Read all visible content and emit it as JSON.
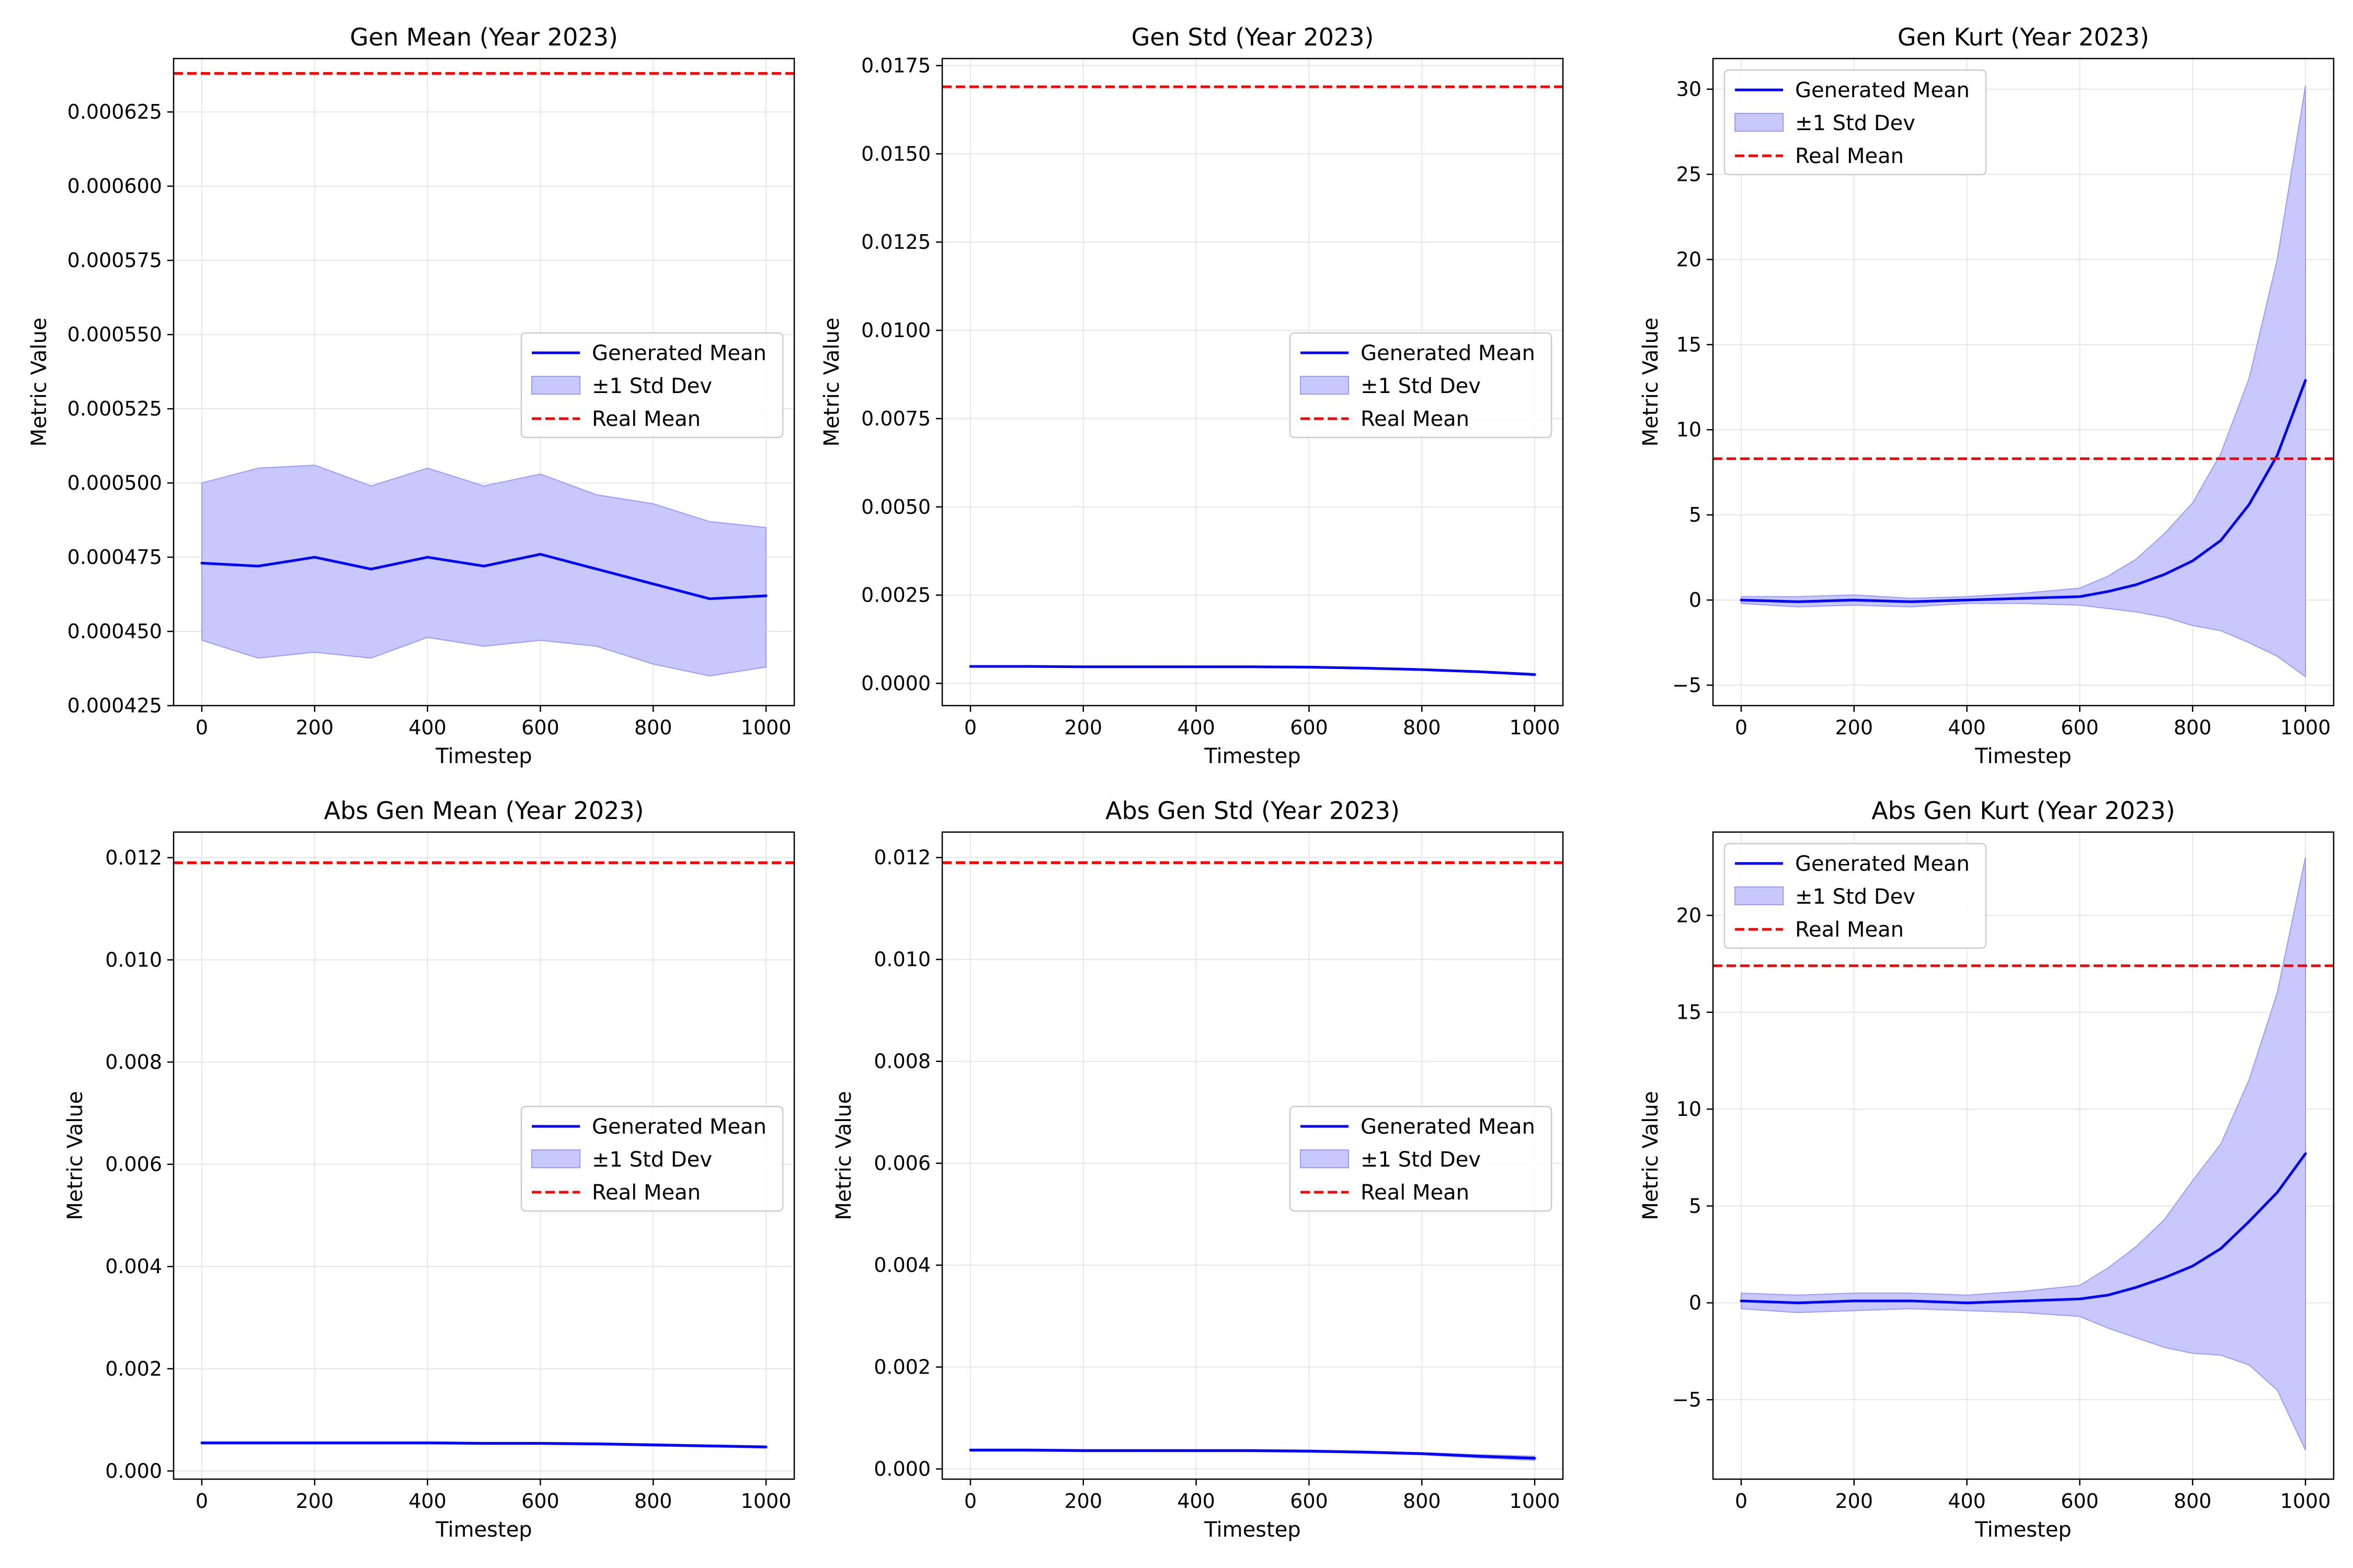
{
  "colors": {
    "generated": "#0000ff",
    "band": "#c8c8ff",
    "band_edge": "#9b9bff",
    "real": "#ff0000",
    "grid": "#e6e6e6",
    "axes": "#000000"
  },
  "chart_data": [
    {
      "type": "line",
      "title": "Gen Mean (Year 2023)",
      "xlabel": "Timestep",
      "ylabel": "Metric Value",
      "xlim": [
        -50,
        1050
      ],
      "ylim": [
        0.000425,
        0.000643
      ],
      "xticks": [
        0,
        200,
        400,
        600,
        800,
        1000
      ],
      "yticks": [
        "0.000425",
        "0.000450",
        "0.000475",
        "0.000500",
        "0.000525",
        "0.000550",
        "0.000575",
        "0.000600",
        "0.000625"
      ],
      "grid": true,
      "legend_position": "center-right",
      "legend": [
        "Generated Mean",
        "±1 Std Dev",
        "Real Mean"
      ],
      "real_mean": 0.000638,
      "x": [
        0,
        100,
        200,
        300,
        400,
        500,
        600,
        700,
        800,
        900,
        1000
      ],
      "generated_mean": [
        0.000473,
        0.000472,
        0.000475,
        0.000471,
        0.000475,
        0.000472,
        0.000476,
        0.000471,
        0.000466,
        0.000461,
        0.000462
      ],
      "std_upper": [
        0.0005,
        0.000505,
        0.000506,
        0.000499,
        0.000505,
        0.000499,
        0.000503,
        0.000496,
        0.000493,
        0.000487,
        0.000485
      ],
      "std_lower": [
        0.000447,
        0.000441,
        0.000443,
        0.000441,
        0.000448,
        0.000445,
        0.000447,
        0.000445,
        0.000439,
        0.000435,
        0.000438
      ]
    },
    {
      "type": "line",
      "title": "Gen Std (Year 2023)",
      "xlabel": "Timestep",
      "ylabel": "Metric Value",
      "xlim": [
        -50,
        1050
      ],
      "ylim": [
        -0.00063,
        0.0177
      ],
      "xticks": [
        0,
        200,
        400,
        600,
        800,
        1000
      ],
      "yticks": [
        "0.0000",
        "0.0025",
        "0.0050",
        "0.0075",
        "0.0100",
        "0.0125",
        "0.0150",
        "0.0175"
      ],
      "grid": true,
      "legend_position": "center-right",
      "legend": [
        "Generated Mean",
        "±1 Std Dev",
        "Real Mean"
      ],
      "real_mean": 0.0169,
      "x": [
        0,
        100,
        200,
        300,
        400,
        500,
        600,
        700,
        800,
        900,
        1000
      ],
      "generated_mean": [
        0.00048,
        0.00048,
        0.00047,
        0.00047,
        0.00047,
        0.00047,
        0.00046,
        0.00043,
        0.00039,
        0.00033,
        0.00025
      ],
      "std_upper": [
        0.0005,
        0.0005,
        0.00049,
        0.00049,
        0.00049,
        0.00049,
        0.00048,
        0.00045,
        0.00041,
        0.00035,
        0.00028
      ],
      "std_lower": [
        0.00046,
        0.00046,
        0.00045,
        0.00045,
        0.00045,
        0.00045,
        0.00044,
        0.00041,
        0.00037,
        0.00031,
        0.00022
      ]
    },
    {
      "type": "line",
      "title": "Gen Kurt (Year 2023)",
      "xlabel": "Timestep",
      "ylabel": "Metric Value",
      "xlim": [
        -50,
        1050
      ],
      "ylim": [
        -6.2,
        31.8
      ],
      "xticks": [
        0,
        200,
        400,
        600,
        800,
        1000
      ],
      "yticks": [
        "−5",
        "0",
        "5",
        "10",
        "15",
        "20",
        "25",
        "30"
      ],
      "grid": true,
      "legend_position": "upper-left",
      "legend": [
        "Generated Mean",
        "±1 Std Dev",
        "Real Mean"
      ],
      "real_mean": 8.3,
      "x": [
        0,
        100,
        200,
        300,
        400,
        500,
        600,
        650,
        700,
        750,
        800,
        850,
        900,
        950,
        1000
      ],
      "generated_mean": [
        0.0,
        -0.1,
        0.0,
        -0.1,
        0.0,
        0.1,
        0.2,
        0.5,
        0.9,
        1.5,
        2.3,
        3.5,
        5.6,
        8.5,
        12.9
      ],
      "std_upper": [
        0.2,
        0.2,
        0.3,
        0.1,
        0.2,
        0.4,
        0.7,
        1.4,
        2.4,
        3.9,
        5.7,
        8.6,
        13.0,
        20.0,
        30.2
      ],
      "std_lower": [
        -0.2,
        -0.4,
        -0.3,
        -0.4,
        -0.2,
        -0.2,
        -0.3,
        -0.5,
        -0.7,
        -1.0,
        -1.5,
        -1.8,
        -2.5,
        -3.3,
        -4.5
      ]
    },
    {
      "type": "line",
      "title": "Abs Gen Mean (Year 2023)",
      "xlabel": "Timestep",
      "ylabel": "Metric Value",
      "xlim": [
        -50,
        1050
      ],
      "ylim": [
        -0.00016,
        0.0125
      ],
      "xticks": [
        0,
        200,
        400,
        600,
        800,
        1000
      ],
      "yticks": [
        "0.000",
        "0.002",
        "0.004",
        "0.006",
        "0.008",
        "0.010",
        "0.012"
      ],
      "grid": true,
      "legend_position": "center-right",
      "legend": [
        "Generated Mean",
        "±1 Std Dev",
        "Real Mean"
      ],
      "real_mean": 0.0119,
      "x": [
        0,
        100,
        200,
        300,
        400,
        500,
        600,
        700,
        800,
        900,
        1000
      ],
      "generated_mean": [
        0.00055,
        0.00055,
        0.00055,
        0.00055,
        0.00055,
        0.00054,
        0.00054,
        0.00053,
        0.00051,
        0.00049,
        0.00047
      ],
      "std_upper": [
        0.00057,
        0.00057,
        0.00057,
        0.00057,
        0.00057,
        0.00056,
        0.00056,
        0.00055,
        0.00053,
        0.00051,
        0.00049
      ],
      "std_lower": [
        0.00053,
        0.00053,
        0.00053,
        0.00053,
        0.00053,
        0.00052,
        0.00052,
        0.00051,
        0.00049,
        0.00047,
        0.00045
      ]
    },
    {
      "type": "line",
      "title": "Abs Gen Std (Year 2023)",
      "xlabel": "Timestep",
      "ylabel": "Metric Value",
      "xlim": [
        -50,
        1050
      ],
      "ylim": [
        -0.0002,
        0.0125
      ],
      "xticks": [
        0,
        200,
        400,
        600,
        800,
        1000
      ],
      "yticks": [
        "0.000",
        "0.002",
        "0.004",
        "0.006",
        "0.008",
        "0.010",
        "0.012"
      ],
      "grid": true,
      "legend_position": "center-right",
      "legend": [
        "Generated Mean",
        "±1 Std Dev",
        "Real Mean"
      ],
      "real_mean": 0.0119,
      "x": [
        0,
        100,
        200,
        300,
        400,
        500,
        600,
        700,
        800,
        900,
        1000
      ],
      "generated_mean": [
        0.00037,
        0.00037,
        0.00036,
        0.00036,
        0.00036,
        0.00036,
        0.00035,
        0.00033,
        0.0003,
        0.00025,
        0.00021
      ],
      "std_upper": [
        0.00039,
        0.00039,
        0.00038,
        0.00038,
        0.00038,
        0.00038,
        0.00037,
        0.00035,
        0.00032,
        0.00028,
        0.00025
      ],
      "std_lower": [
        0.00035,
        0.00035,
        0.00034,
        0.00034,
        0.00034,
        0.00034,
        0.00033,
        0.00031,
        0.00028,
        0.00022,
        0.00017
      ]
    },
    {
      "type": "line",
      "title": "Abs Gen Kurt (Year 2023)",
      "xlabel": "Timestep",
      "ylabel": "Metric Value",
      "xlim": [
        -50,
        1050
      ],
      "ylim": [
        -9.1,
        24.3
      ],
      "xticks": [
        0,
        200,
        400,
        600,
        800,
        1000
      ],
      "yticks": [
        "−5",
        "0",
        "5",
        "10",
        "15",
        "20"
      ],
      "grid": true,
      "legend_position": "upper-left",
      "legend": [
        "Generated Mean",
        "±1 Std Dev",
        "Real Mean"
      ],
      "real_mean": 17.4,
      "x": [
        0,
        100,
        200,
        300,
        400,
        500,
        600,
        650,
        700,
        750,
        800,
        850,
        900,
        950,
        1000
      ],
      "generated_mean": [
        0.1,
        0.0,
        0.1,
        0.1,
        0.0,
        0.1,
        0.2,
        0.4,
        0.8,
        1.3,
        1.9,
        2.8,
        4.2,
        5.7,
        7.7
      ],
      "std_upper": [
        0.5,
        0.4,
        0.5,
        0.5,
        0.4,
        0.6,
        0.9,
        1.8,
        2.9,
        4.3,
        6.3,
        8.2,
        11.5,
        16.0,
        23.0
      ],
      "std_lower": [
        -0.3,
        -0.5,
        -0.4,
        -0.3,
        -0.4,
        -0.5,
        -0.7,
        -1.3,
        -1.8,
        -2.3,
        -2.6,
        -2.7,
        -3.2,
        -4.5,
        -7.6
      ]
    }
  ]
}
